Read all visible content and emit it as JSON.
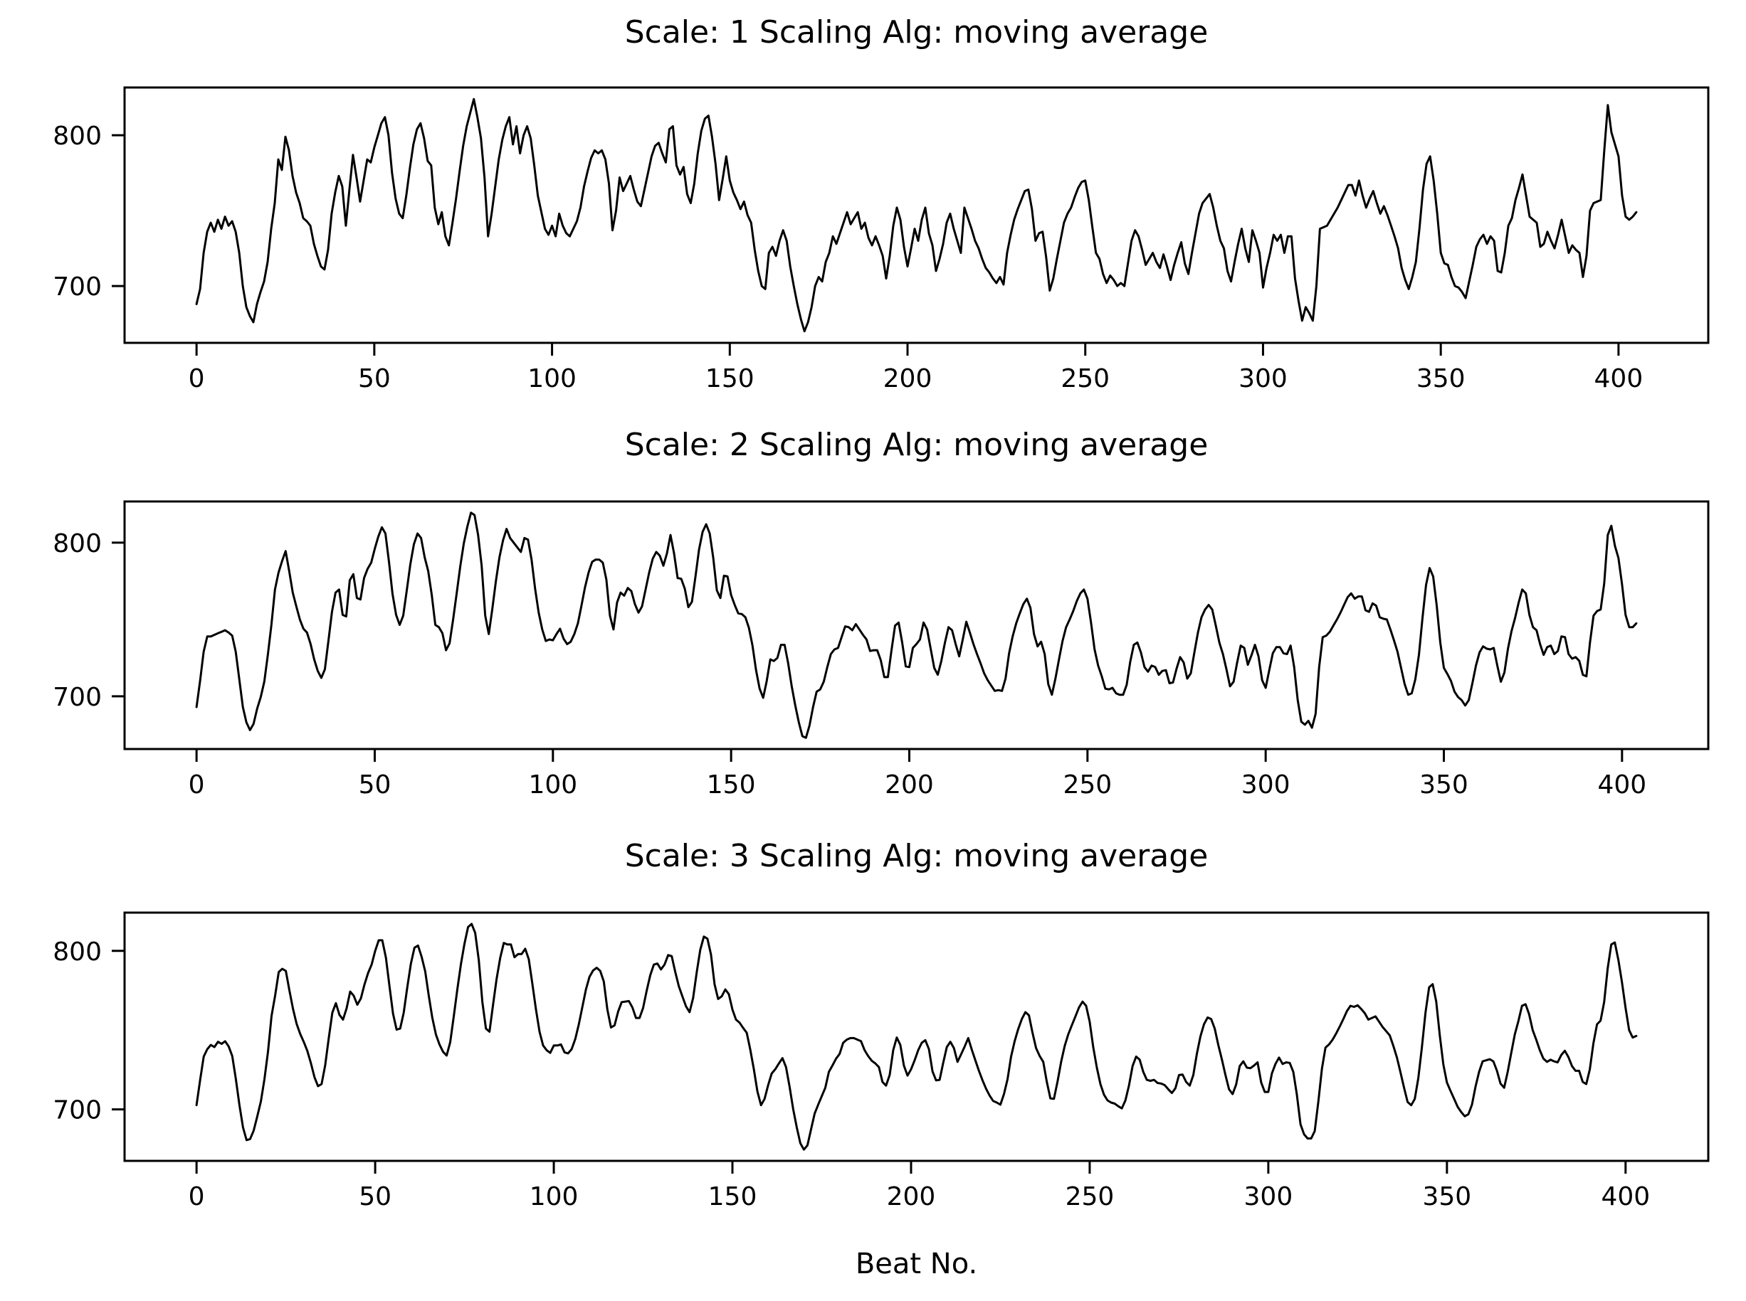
{
  "figure": {
    "background": "#ffffff",
    "line_color": "#000000",
    "text_color": "#000000"
  },
  "chart_data": {
    "type": "line",
    "xlabel": "Beat No.",
    "legend": "none",
    "grid": false,
    "xticks": [
      0,
      50,
      100,
      150,
      200,
      250,
      300,
      350,
      400
    ],
    "yticks": [
      700,
      800
    ],
    "xlim_hint": [
      -20,
      425
    ],
    "x_start": 0,
    "x_step": 1,
    "smoothing_note": "panels show same beat-interval series smoothed by moving average of window = scale",
    "panels": [
      {
        "title": "Scale: 1 Scaling Alg: moving average",
        "scale": 1,
        "smooth_window": 1,
        "ylim_hint": [
          662,
          832
        ]
      },
      {
        "title": "Scale: 2 Scaling Alg: moving average",
        "scale": 2,
        "smooth_window": 2,
        "ylim_hint": [
          666,
          827
        ]
      },
      {
        "title": "Scale: 3 Scaling Alg: moving average",
        "scale": 3,
        "smooth_window": 3,
        "ylim_hint": [
          672,
          826
        ]
      }
    ],
    "values": [
      688,
      698,
      722,
      736,
      742,
      736,
      744,
      738,
      746,
      740,
      743,
      736,
      722,
      700,
      686,
      680,
      676,
      688,
      696,
      703,
      716,
      738,
      755,
      784,
      777,
      799,
      790,
      773,
      762,
      755,
      745,
      743,
      740,
      728,
      720,
      713,
      711,
      724,
      748,
      762,
      773,
      766,
      740,
      764,
      787,
      772,
      756,
      770,
      784,
      782,
      792,
      800,
      808,
      812,
      800,
      775,
      758,
      748,
      745,
      760,
      778,
      794,
      804,
      808,
      798,
      783,
      780,
      752,
      741,
      749,
      733,
      727,
      742,
      758,
      776,
      793,
      806,
      815,
      824,
      812,
      798,
      772,
      733,
      748,
      766,
      784,
      797,
      806,
      812,
      794,
      806,
      788,
      800,
      806,
      798,
      780,
      760,
      749,
      738,
      734,
      740,
      733,
      748,
      740,
      735,
      733,
      738,
      743,
      752,
      766,
      776,
      785,
      790,
      788,
      790,
      784,
      768,
      737,
      750,
      772,
      763,
      768,
      773,
      764,
      756,
      753,
      764,
      775,
      786,
      793,
      795,
      788,
      782,
      804,
      806,
      780,
      774,
      779,
      761,
      755,
      768,
      788,
      803,
      811,
      813,
      799,
      781,
      757,
      771,
      786,
      770,
      762,
      757,
      751,
      756,
      747,
      742,
      724,
      710,
      700,
      698,
      722,
      726,
      720,
      730,
      737,
      730,
      713,
      700,
      688,
      678,
      670,
      676,
      686,
      700,
      706,
      703,
      716,
      722,
      733,
      728,
      735,
      742,
      749,
      741,
      745,
      749,
      738,
      742,
      732,
      727,
      733,
      727,
      720,
      705,
      720,
      740,
      752,
      744,
      726,
      713,
      725,
      738,
      730,
      744,
      752,
      735,
      727,
      710,
      718,
      728,
      742,
      748,
      738,
      730,
      722,
      752,
      745,
      738,
      730,
      725,
      718,
      712,
      709,
      705,
      702,
      706,
      701,
      722,
      734,
      744,
      751,
      757,
      763,
      764,
      751,
      730,
      735,
      736,
      719,
      697,
      705,
      718,
      730,
      742,
      748,
      752,
      759,
      765,
      769,
      770,
      757,
      739,
      722,
      718,
      708,
      702,
      707,
      704,
      700,
      702,
      700,
      715,
      730,
      737,
      733,
      724,
      714,
      718,
      722,
      716,
      712,
      721,
      713,
      704,
      714,
      722,
      729,
      715,
      708,
      722,
      735,
      748,
      755,
      758,
      761,
      752,
      740,
      730,
      725,
      710,
      703,
      716,
      728,
      738,
      725,
      716,
      737,
      730,
      722,
      699,
      712,
      722,
      734,
      730,
      734,
      722,
      733,
      733,
      705,
      690,
      677,
      686,
      682,
      677,
      700,
      738,
      739,
      740,
      744,
      748,
      752,
      757,
      762,
      767,
      767,
      760,
      770,
      760,
      752,
      758,
      763,
      755,
      748,
      753,
      747,
      740,
      733,
      725,
      712,
      704,
      698,
      706,
      716,
      738,
      764,
      781,
      786,
      770,
      748,
      722,
      715,
      714,
      706,
      700,
      699,
      696,
      692,
      703,
      714,
      726,
      731,
      734,
      728,
      733,
      730,
      710,
      709,
      722,
      740,
      745,
      757,
      765,
      774,
      760,
      746,
      744,
      742,
      726,
      728,
      736,
      730,
      725,
      734,
      744,
      733,
      722,
      727,
      724,
      722,
      706,
      720,
      750,
      755,
      756,
      757,
      790,
      820,
      802,
      794,
      786,
      760,
      746,
      744,
      746,
      749
    ]
  }
}
